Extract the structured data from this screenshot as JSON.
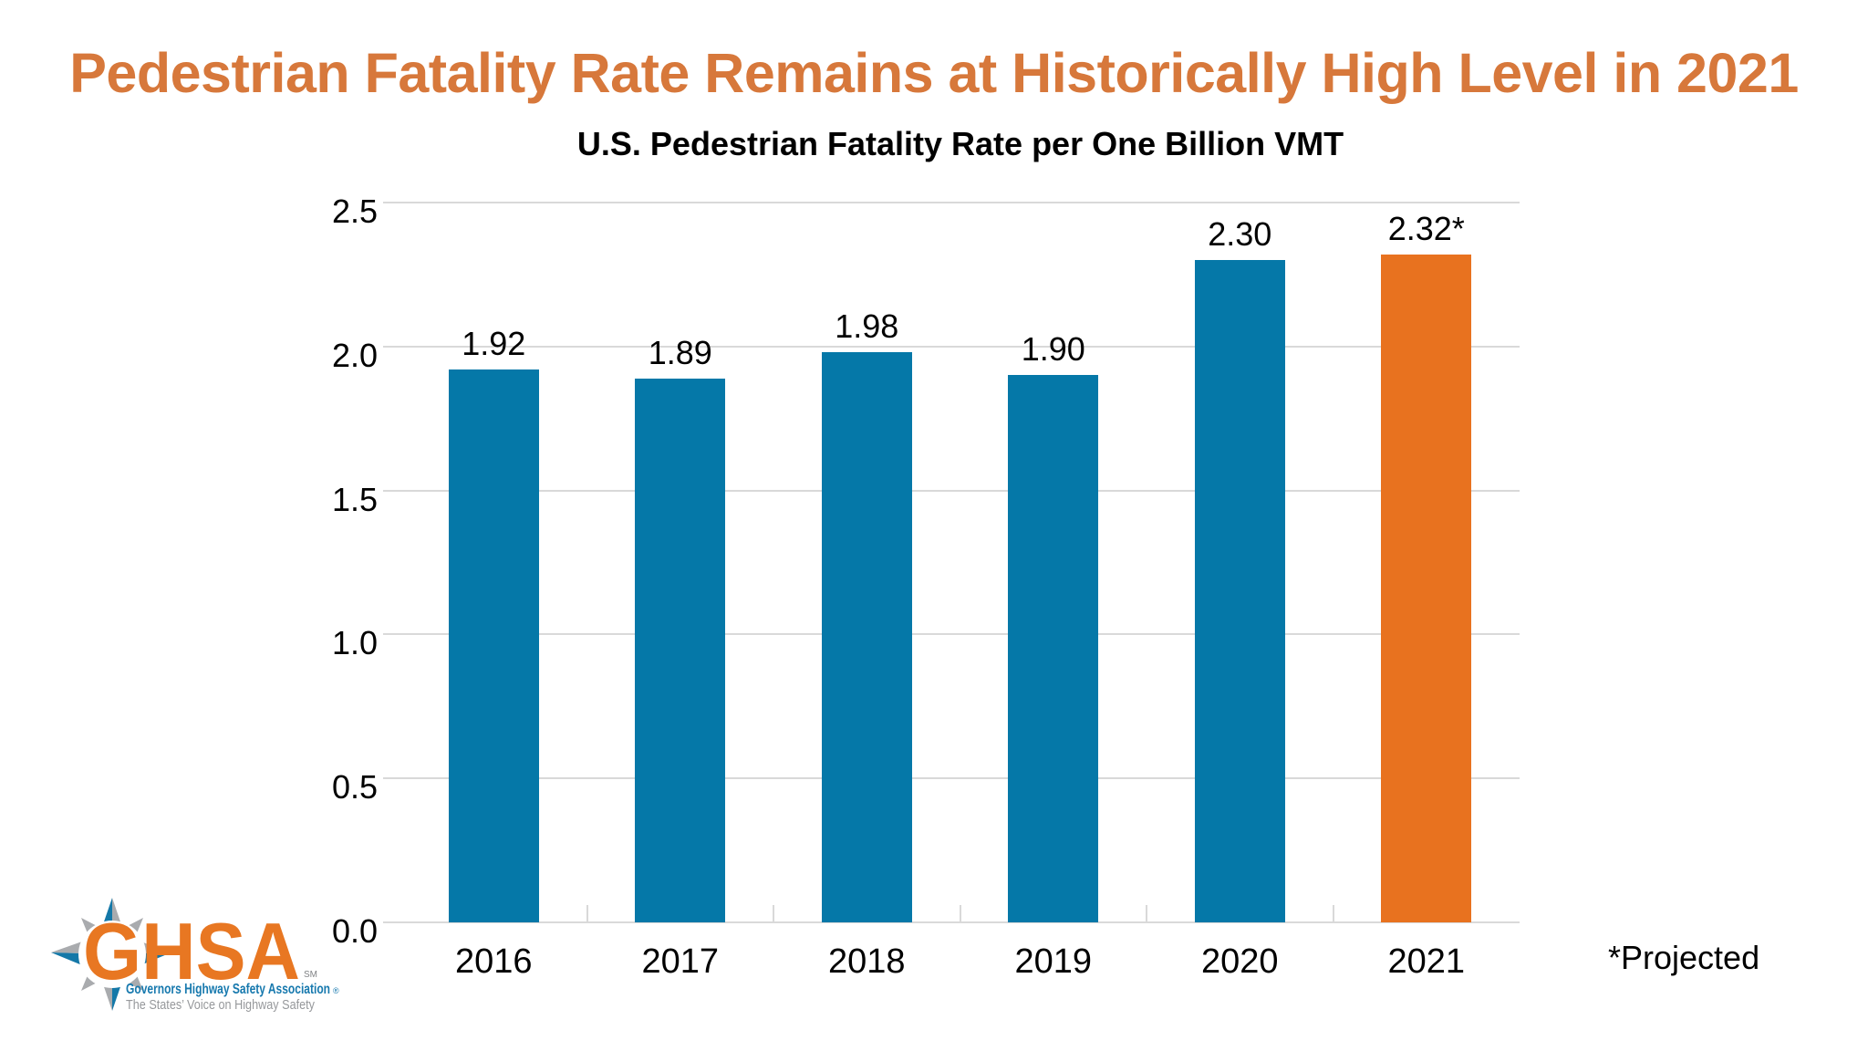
{
  "title": {
    "text": "Pedestrian Fatality Rate Remains at Historically High Level in 2021",
    "color": "#D7783B"
  },
  "chart": {
    "subtitle": "U.S. Pedestrian Fatality Rate per One Billion VMT",
    "note": "*Projected",
    "gridline_color": "#D9D9D9"
  },
  "chart_data": {
    "type": "bar",
    "title": "U.S. Pedestrian Fatality Rate per One Billion VMT",
    "categories": [
      "2016",
      "2017",
      "2018",
      "2019",
      "2020",
      "2021"
    ],
    "values": [
      1.92,
      1.89,
      1.98,
      1.9,
      2.3,
      2.32
    ],
    "bar_labels": [
      "1.92",
      "1.89",
      "1.98",
      "1.90",
      "2.30",
      "2.32*"
    ],
    "bar_colors": [
      "#0578A8",
      "#0578A8",
      "#0578A8",
      "#0578A8",
      "#0578A8",
      "#E8721F"
    ],
    "default_bar_color": "#0578A8",
    "highlight_bar_color": "#E8721F",
    "xlabel": "",
    "ylabel": "",
    "ylim": [
      0,
      2.5
    ],
    "y_ticks": [
      {
        "value": 0.0,
        "label": "0.0"
      },
      {
        "value": 0.5,
        "label": "0.5"
      },
      {
        "value": 1.0,
        "label": "1.0"
      },
      {
        "value": 1.5,
        "label": "1.5"
      },
      {
        "value": 2.0,
        "label": "2.0"
      },
      {
        "value": 2.5,
        "label": "2.5"
      }
    ],
    "grid": true,
    "legend": false,
    "annotation": "*Projected"
  },
  "logo": {
    "acronym": "GHSA",
    "sm_mark": "SM",
    "org_name": "Governors Highway Safety Association",
    "reg_mark": "®",
    "tagline": "The States’ Voice on Highway Safety",
    "orange": "#E87722",
    "blue": "#1478A8",
    "text_blue": "#1779AE",
    "gray": "#A9ABAE",
    "tagline_gray": "#96989B"
  }
}
